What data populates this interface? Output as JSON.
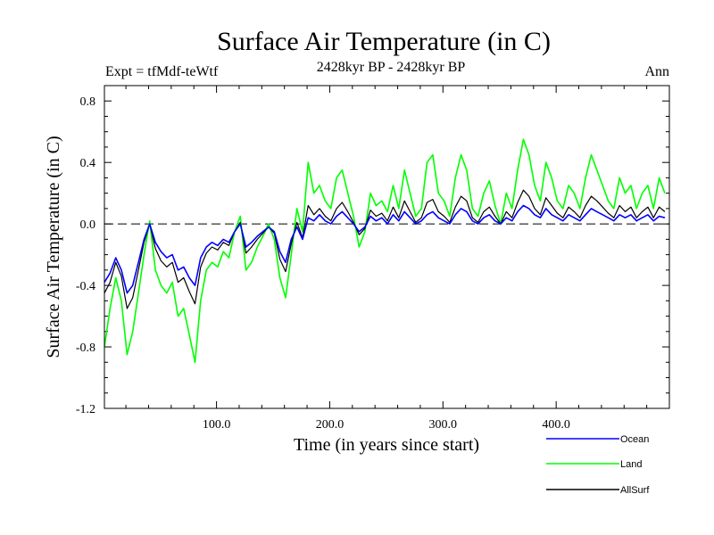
{
  "chart_data": {
    "type": "line",
    "title": "Surface Air Temperature (in C)",
    "subtitle": "2428kyr BP - 2428kyr BP",
    "left_label": "Expt = tfMdf-teWtf",
    "right_label": "Ann",
    "xlabel": "Time (in years since start)",
    "ylabel": "Surface Air Temperature (in C)",
    "xlim": [
      1,
      500
    ],
    "ylim": [
      -1.2,
      0.9
    ],
    "x_ticks": [
      100,
      200,
      300,
      400
    ],
    "x_tick_labels": [
      "100.0",
      "200.0",
      "300.0",
      "400.0"
    ],
    "y_ticks": [
      -1.2,
      -0.8,
      -0.4,
      0.0,
      0.4,
      0.8
    ],
    "y_tick_labels": [
      "-1.2",
      "-0.8",
      "-0.4",
      "0.0",
      "0.4",
      "0.8"
    ],
    "reference_line": 0.0,
    "legend_position": "bottom-right",
    "series": [
      {
        "name": "Ocean",
        "color": "#0000ff",
        "x_start": 1,
        "x_step": 5,
        "values": [
          -0.38,
          -0.32,
          -0.22,
          -0.3,
          -0.45,
          -0.4,
          -0.25,
          -0.1,
          0.0,
          -0.12,
          -0.18,
          -0.22,
          -0.2,
          -0.3,
          -0.28,
          -0.35,
          -0.4,
          -0.22,
          -0.15,
          -0.12,
          -0.14,
          -0.1,
          -0.12,
          -0.05,
          0.0,
          -0.15,
          -0.12,
          -0.08,
          -0.05,
          -0.02,
          -0.05,
          -0.18,
          -0.25,
          -0.1,
          -0.02,
          -0.1,
          0.04,
          0.02,
          0.06,
          0.02,
          0.0,
          0.05,
          0.08,
          0.04,
          0.0,
          -0.05,
          -0.02,
          0.05,
          0.02,
          0.04,
          0.0,
          0.06,
          0.02,
          0.08,
          0.04,
          0.0,
          0.02,
          0.06,
          0.08,
          0.04,
          0.02,
          0.0,
          0.06,
          0.1,
          0.08,
          0.02,
          0.0,
          0.04,
          0.06,
          0.02,
          0.0,
          0.04,
          0.02,
          0.08,
          0.12,
          0.1,
          0.06,
          0.04,
          0.1,
          0.06,
          0.04,
          0.02,
          0.06,
          0.04,
          0.02,
          0.06,
          0.1,
          0.08,
          0.06,
          0.04,
          0.02,
          0.06,
          0.04,
          0.06,
          0.02,
          0.04,
          0.06,
          0.02,
          0.05,
          0.04
        ]
      },
      {
        "name": "Land",
        "color": "#00ff00",
        "x_start": 1,
        "x_step": 5,
        "values": [
          -0.8,
          -0.55,
          -0.35,
          -0.5,
          -0.85,
          -0.7,
          -0.45,
          -0.2,
          0.02,
          -0.3,
          -0.4,
          -0.45,
          -0.38,
          -0.6,
          -0.55,
          -0.72,
          -0.9,
          -0.5,
          -0.3,
          -0.25,
          -0.28,
          -0.18,
          -0.22,
          -0.05,
          0.05,
          -0.3,
          -0.25,
          -0.15,
          -0.08,
          0.0,
          -0.1,
          -0.35,
          -0.48,
          -0.2,
          0.1,
          -0.05,
          0.4,
          0.2,
          0.25,
          0.15,
          0.1,
          0.3,
          0.35,
          0.2,
          0.05,
          -0.15,
          -0.05,
          0.2,
          0.12,
          0.15,
          0.08,
          0.25,
          0.1,
          0.35,
          0.2,
          0.05,
          0.1,
          0.4,
          0.45,
          0.2,
          0.15,
          0.05,
          0.3,
          0.45,
          0.35,
          0.1,
          0.05,
          0.2,
          0.28,
          0.12,
          0.0,
          0.2,
          0.1,
          0.35,
          0.55,
          0.45,
          0.25,
          0.15,
          0.4,
          0.3,
          0.15,
          0.1,
          0.25,
          0.2,
          0.1,
          0.3,
          0.45,
          0.35,
          0.25,
          0.15,
          0.1,
          0.3,
          0.2,
          0.25,
          0.1,
          0.2,
          0.25,
          0.1,
          0.3,
          0.2
        ]
      },
      {
        "name": "AllSurf",
        "color": "#000000",
        "x_start": 1,
        "x_step": 5,
        "values": [
          -0.45,
          -0.38,
          -0.25,
          -0.34,
          -0.55,
          -0.48,
          -0.3,
          -0.12,
          0.0,
          -0.16,
          -0.24,
          -0.28,
          -0.25,
          -0.38,
          -0.35,
          -0.44,
          -0.52,
          -0.28,
          -0.19,
          -0.15,
          -0.17,
          -0.12,
          -0.14,
          -0.05,
          0.01,
          -0.19,
          -0.15,
          -0.1,
          -0.06,
          -0.02,
          -0.06,
          -0.23,
          -0.31,
          -0.13,
          0.01,
          -0.09,
          0.12,
          0.06,
          0.1,
          0.05,
          0.02,
          0.1,
          0.14,
          0.08,
          0.01,
          -0.07,
          -0.03,
          0.09,
          0.05,
          0.07,
          0.02,
          0.11,
          0.04,
          0.15,
          0.08,
          0.01,
          0.04,
          0.14,
          0.16,
          0.08,
          0.05,
          0.01,
          0.11,
          0.18,
          0.15,
          0.04,
          0.01,
          0.08,
          0.11,
          0.05,
          0.0,
          0.08,
          0.04,
          0.14,
          0.22,
          0.18,
          0.1,
          0.06,
          0.17,
          0.12,
          0.07,
          0.04,
          0.11,
          0.08,
          0.04,
          0.12,
          0.18,
          0.15,
          0.11,
          0.07,
          0.04,
          0.12,
          0.08,
          0.11,
          0.04,
          0.08,
          0.11,
          0.04,
          0.11,
          0.08
        ]
      }
    ]
  }
}
